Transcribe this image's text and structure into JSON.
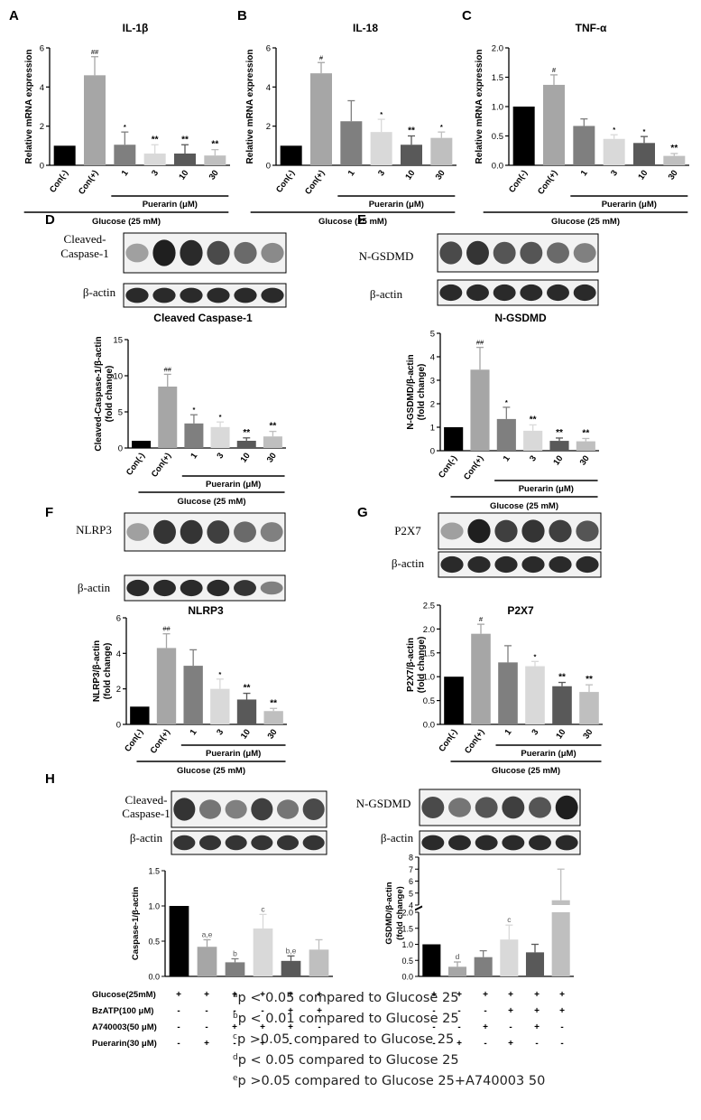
{
  "colors": {
    "black": "#000000",
    "g1": "#a6a6a6",
    "g2": "#7f7f7f",
    "g3": "#d9d9d9",
    "g4": "#595959",
    "g5": "#bfbfbf"
  },
  "panels": {
    "A": "A",
    "B": "B",
    "C": "C",
    "D": "D",
    "E": "E",
    "F": "F",
    "G": "G",
    "H": "H"
  },
  "common": {
    "con_minus": "Con(-)",
    "con_plus": "Con(+)",
    "puerarin": "Puerarin (μM)",
    "glucose": "Glucose (25 mM)",
    "doses": [
      "1",
      "3",
      "10",
      "30"
    ],
    "beta_actin": "β-actin",
    "rel_mrna": "Relative mRNA expression",
    "fold_change": "(fold change)"
  },
  "blots": {
    "D_top": "Cleaved-\nCaspase-1",
    "E_top": "N-GSDMD",
    "F_top": "NLRP3",
    "G_top": "P2X7",
    "H_left_top": "Cleaved-\nCaspase-1",
    "H_right_top": "N-GSDMD"
  },
  "chart_data": [
    {
      "panel": "A",
      "type": "bar",
      "title": "IL-1β",
      "ylabel": "Relative mRNA expression",
      "ylim": [
        0,
        6
      ],
      "yticks": [
        0,
        2,
        4,
        6
      ],
      "categories": [
        "Con(-)",
        "Con(+)",
        "1",
        "3",
        "10",
        "30"
      ],
      "values": [
        1.0,
        4.6,
        1.05,
        0.6,
        0.6,
        0.5
      ],
      "errors": [
        0,
        0.95,
        0.65,
        0.45,
        0.45,
        0.3
      ],
      "annotations": [
        "",
        "##",
        "*",
        "**",
        "**",
        "**"
      ]
    },
    {
      "panel": "B",
      "type": "bar",
      "title": "IL-18",
      "ylabel": "Relative mRNA expression",
      "ylim": [
        0,
        6
      ],
      "yticks": [
        0,
        2,
        4,
        6
      ],
      "categories": [
        "Con(-)",
        "Con(+)",
        "1",
        "3",
        "10",
        "30"
      ],
      "values": [
        1.0,
        4.7,
        2.25,
        1.7,
        1.05,
        1.4
      ],
      "errors": [
        0,
        0.55,
        1.05,
        0.65,
        0.45,
        0.3
      ],
      "annotations": [
        "",
        "#",
        "",
        "*",
        "**",
        "*"
      ]
    },
    {
      "panel": "C",
      "type": "bar",
      "title": "TNF-α",
      "ylabel": "Relative mRNA expression",
      "ylim": [
        0,
        2.0
      ],
      "yticks": [
        0.0,
        0.5,
        1.0,
        1.5,
        2.0
      ],
      "categories": [
        "Con(-)",
        "Con(+)",
        "1",
        "3",
        "10",
        "30"
      ],
      "values": [
        1.0,
        1.37,
        0.67,
        0.45,
        0.38,
        0.16
      ],
      "errors": [
        0,
        0.17,
        0.12,
        0.07,
        0.11,
        0.04
      ],
      "annotations": [
        "",
        "#",
        "",
        "*",
        "*",
        "**"
      ]
    },
    {
      "panel": "D",
      "type": "bar",
      "title": "Cleaved Caspase-1",
      "ylabel": "Cleaved-Caspase-1/β-actin",
      "ylim": [
        0,
        15
      ],
      "yticks": [
        0,
        5,
        10,
        15
      ],
      "categories": [
        "Con(-)",
        "Con(+)",
        "1",
        "3",
        "10",
        "30"
      ],
      "values": [
        1.0,
        8.5,
        3.4,
        2.9,
        1.0,
        1.6
      ],
      "errors": [
        0,
        1.7,
        1.2,
        0.7,
        0.4,
        0.7
      ],
      "annotations": [
        "",
        "##",
        "*",
        "*",
        "**",
        "**"
      ]
    },
    {
      "panel": "E",
      "type": "bar",
      "title": "N-GSDMD",
      "ylabel": "N-GSDMD/β-actin",
      "ylim": [
        0,
        5
      ],
      "yticks": [
        0,
        1,
        2,
        3,
        4,
        5
      ],
      "categories": [
        "Con(-)",
        "Con(+)",
        "1",
        "3",
        "10",
        "30"
      ],
      "values": [
        1.0,
        3.45,
        1.35,
        0.85,
        0.42,
        0.4
      ],
      "errors": [
        0,
        0.95,
        0.5,
        0.25,
        0.12,
        0.12
      ],
      "annotations": [
        "",
        "##",
        "*",
        "**",
        "**",
        "**"
      ]
    },
    {
      "panel": "F",
      "type": "bar",
      "title": "NLRP3",
      "ylabel": "NLRP3/β-actin",
      "ylim": [
        0,
        6
      ],
      "yticks": [
        0,
        2,
        4,
        6
      ],
      "categories": [
        "Con(-)",
        "Con(+)",
        "1",
        "3",
        "10",
        "30"
      ],
      "values": [
        1.0,
        4.3,
        3.3,
        2.0,
        1.4,
        0.75
      ],
      "errors": [
        0,
        0.8,
        0.9,
        0.55,
        0.35,
        0.15
      ],
      "annotations": [
        "",
        "##",
        "",
        "*",
        "**",
        "**"
      ]
    },
    {
      "panel": "G",
      "type": "bar",
      "title": "P2X7",
      "ylabel": "P2X7/β-actin",
      "ylim": [
        0,
        2.5
      ],
      "yticks": [
        0.0,
        0.5,
        1.0,
        1.5,
        2.0,
        2.5
      ],
      "categories": [
        "Con(-)",
        "Con(+)",
        "1",
        "3",
        "10",
        "30"
      ],
      "values": [
        1.0,
        1.9,
        1.3,
        1.22,
        0.8,
        0.68
      ],
      "errors": [
        0,
        0.2,
        0.35,
        0.1,
        0.08,
        0.15
      ],
      "annotations": [
        "",
        "#",
        "",
        "*",
        "**",
        "**"
      ]
    },
    {
      "panel": "H-left",
      "type": "bar",
      "title": "",
      "ylabel": "Caspase-1/β-actin",
      "ylim": [
        0,
        1.5
      ],
      "yticks": [
        0.0,
        0.5,
        1.0,
        1.5
      ],
      "values": [
        1.0,
        0.42,
        0.2,
        0.68,
        0.22,
        0.38
      ],
      "errors": [
        0,
        0.1,
        0.05,
        0.2,
        0.07,
        0.14
      ],
      "annotations": [
        "",
        "a,e",
        "b",
        "c",
        "b,e",
        ""
      ]
    },
    {
      "panel": "H-right",
      "type": "bar",
      "title": "",
      "ylabel": "GSDMD/β-actin",
      "yticks_lower": [
        0.0,
        0.5,
        1.0,
        1.5,
        2.0
      ],
      "yticks_upper": [
        4,
        5,
        6,
        7,
        8
      ],
      "axis_break": [
        2.0,
        4.0
      ],
      "values": [
        1.0,
        0.3,
        0.6,
        1.15,
        0.75,
        4.4
      ],
      "errors": [
        0,
        0.15,
        0.2,
        0.45,
        0.25,
        2.6
      ],
      "annotations": [
        "",
        "d",
        "",
        "c",
        "",
        ""
      ]
    }
  ],
  "treatment_table": {
    "rows": [
      {
        "label": "Glucose(25mM)",
        "left": [
          "+",
          "+",
          "+",
          "+",
          "+",
          "+"
        ],
        "right": [
          "+",
          "+",
          "+",
          "+",
          "+",
          "+"
        ]
      },
      {
        "label": "BzATP(100 μM)",
        "left": [
          "-",
          "-",
          "-",
          "-",
          "+",
          "+"
        ],
        "right": [
          "-",
          "-",
          "-",
          "+",
          "+",
          "+"
        ]
      },
      {
        "label": "A740003(50 μM)",
        "left": [
          "-",
          "-",
          "+",
          "+",
          "+",
          "-"
        ],
        "right": [
          "-",
          "-",
          "+",
          "-",
          "+",
          "-"
        ]
      },
      {
        "label": "Puerarin(30 μM)",
        "left": [
          "-",
          "+",
          "-",
          "+",
          "-",
          "-"
        ],
        "right": [
          "-",
          "+",
          "-",
          "+",
          "-",
          "-"
        ]
      }
    ]
  },
  "footnotes": [
    {
      "sup": "a",
      "text": "p < 0.05 compared to Glucose 25"
    },
    {
      "sup": "b",
      "text": "p < 0.01 compared to Glucose 25"
    },
    {
      "sup": "c",
      "text": "p >0.05 compared to Glucose 25"
    },
    {
      "sup": "d",
      "text": "p < 0.05 compared to Glucose 25"
    },
    {
      "sup": "e",
      "text": "p >0.05 compared to Glucose 25+A740003  50"
    }
  ]
}
